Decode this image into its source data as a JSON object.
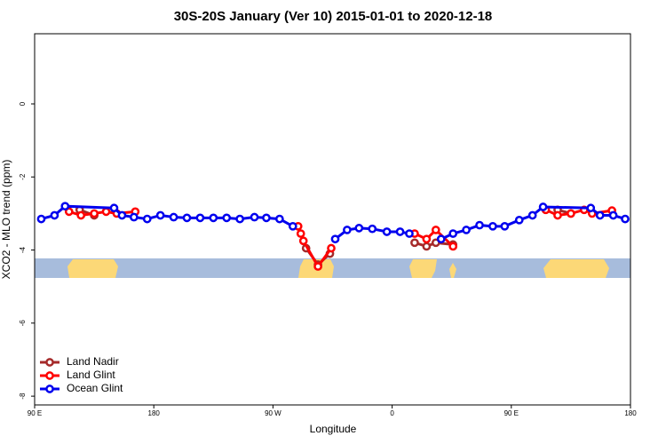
{
  "chart_data": {
    "type": "line",
    "title": "30S-20S January (Ver 10)   2015-01-01 to 2020-12-18",
    "x_label": "Longitude",
    "y_label": "XCO2 - MLO trend (ppm)",
    "xlim": [
      90,
      540
    ],
    "ylim": [
      -8.24,
      1.92
    ],
    "xticks": [
      {
        "value": 90,
        "label": "90 E"
      },
      180,
      {
        "value": 270,
        "label": "90 W"
      },
      {
        "value": 360,
        "label": "0"
      },
      {
        "value": 450,
        "label": "90 E"
      },
      {
        "value": 540,
        "label": "180"
      }
    ],
    "yticks": [
      0,
      -2,
      -4,
      -6,
      -8
    ],
    "legend": "bottomleft",
    "series": [
      {
        "name": "Land Nadir",
        "color": "#a52a2a",
        "x": [
          124,
          135,
          null,
          295,
          304,
          313,
          null,
          377,
          386,
          393,
          406,
          null,
          485,
          495
        ],
        "values": [
          -2.9,
          -3.05,
          null,
          -3.95,
          -4.4,
          -4.1,
          null,
          -3.8,
          -3.9,
          -3.8,
          -3.85,
          null,
          -2.9,
          -3.0
        ]
      },
      {
        "name": "Land Glint",
        "color": "#ff0000",
        "x": [
          116,
          125,
          135,
          144,
          152,
          166,
          null,
          289,
          291,
          293,
          304,
          314,
          null,
          377,
          386,
          393,
          406,
          null,
          476,
          485,
          495,
          505,
          511,
          526
        ],
        "values": [
          -2.95,
          -3.05,
          -3.0,
          -2.95,
          -3.0,
          -2.95,
          null,
          -3.35,
          -3.55,
          -3.75,
          -4.45,
          -3.95,
          null,
          -3.55,
          -3.7,
          -3.45,
          -3.9,
          null,
          -2.9,
          -3.05,
          -3.0,
          -2.9,
          -3.0,
          -2.92
        ]
      },
      {
        "name": "Ocean Glint",
        "color": "#0000ee",
        "x": [
          95,
          105,
          113,
          150,
          156,
          165,
          175,
          185,
          195,
          205,
          215,
          225,
          235,
          245,
          256,
          265,
          275,
          285,
          null,
          317,
          326,
          335,
          345,
          356,
          366,
          373,
          null,
          397,
          406,
          416,
          426,
          436,
          445,
          456,
          466,
          474,
          510,
          517,
          527,
          536
        ],
        "values": [
          -3.15,
          -3.05,
          -2.8,
          -2.85,
          -3.05,
          -3.1,
          -3.15,
          -3.05,
          -3.1,
          -3.12,
          -3.12,
          -3.12,
          -3.12,
          -3.15,
          -3.1,
          -3.12,
          -3.15,
          -3.35,
          null,
          -3.7,
          -3.45,
          -3.4,
          -3.42,
          -3.5,
          -3.5,
          -3.55,
          null,
          -3.7,
          -3.55,
          -3.45,
          -3.32,
          -3.35,
          -3.35,
          -3.18,
          -3.05,
          -2.82,
          -2.85,
          -3.05,
          -3.05,
          -3.15
        ]
      }
    ]
  }
}
